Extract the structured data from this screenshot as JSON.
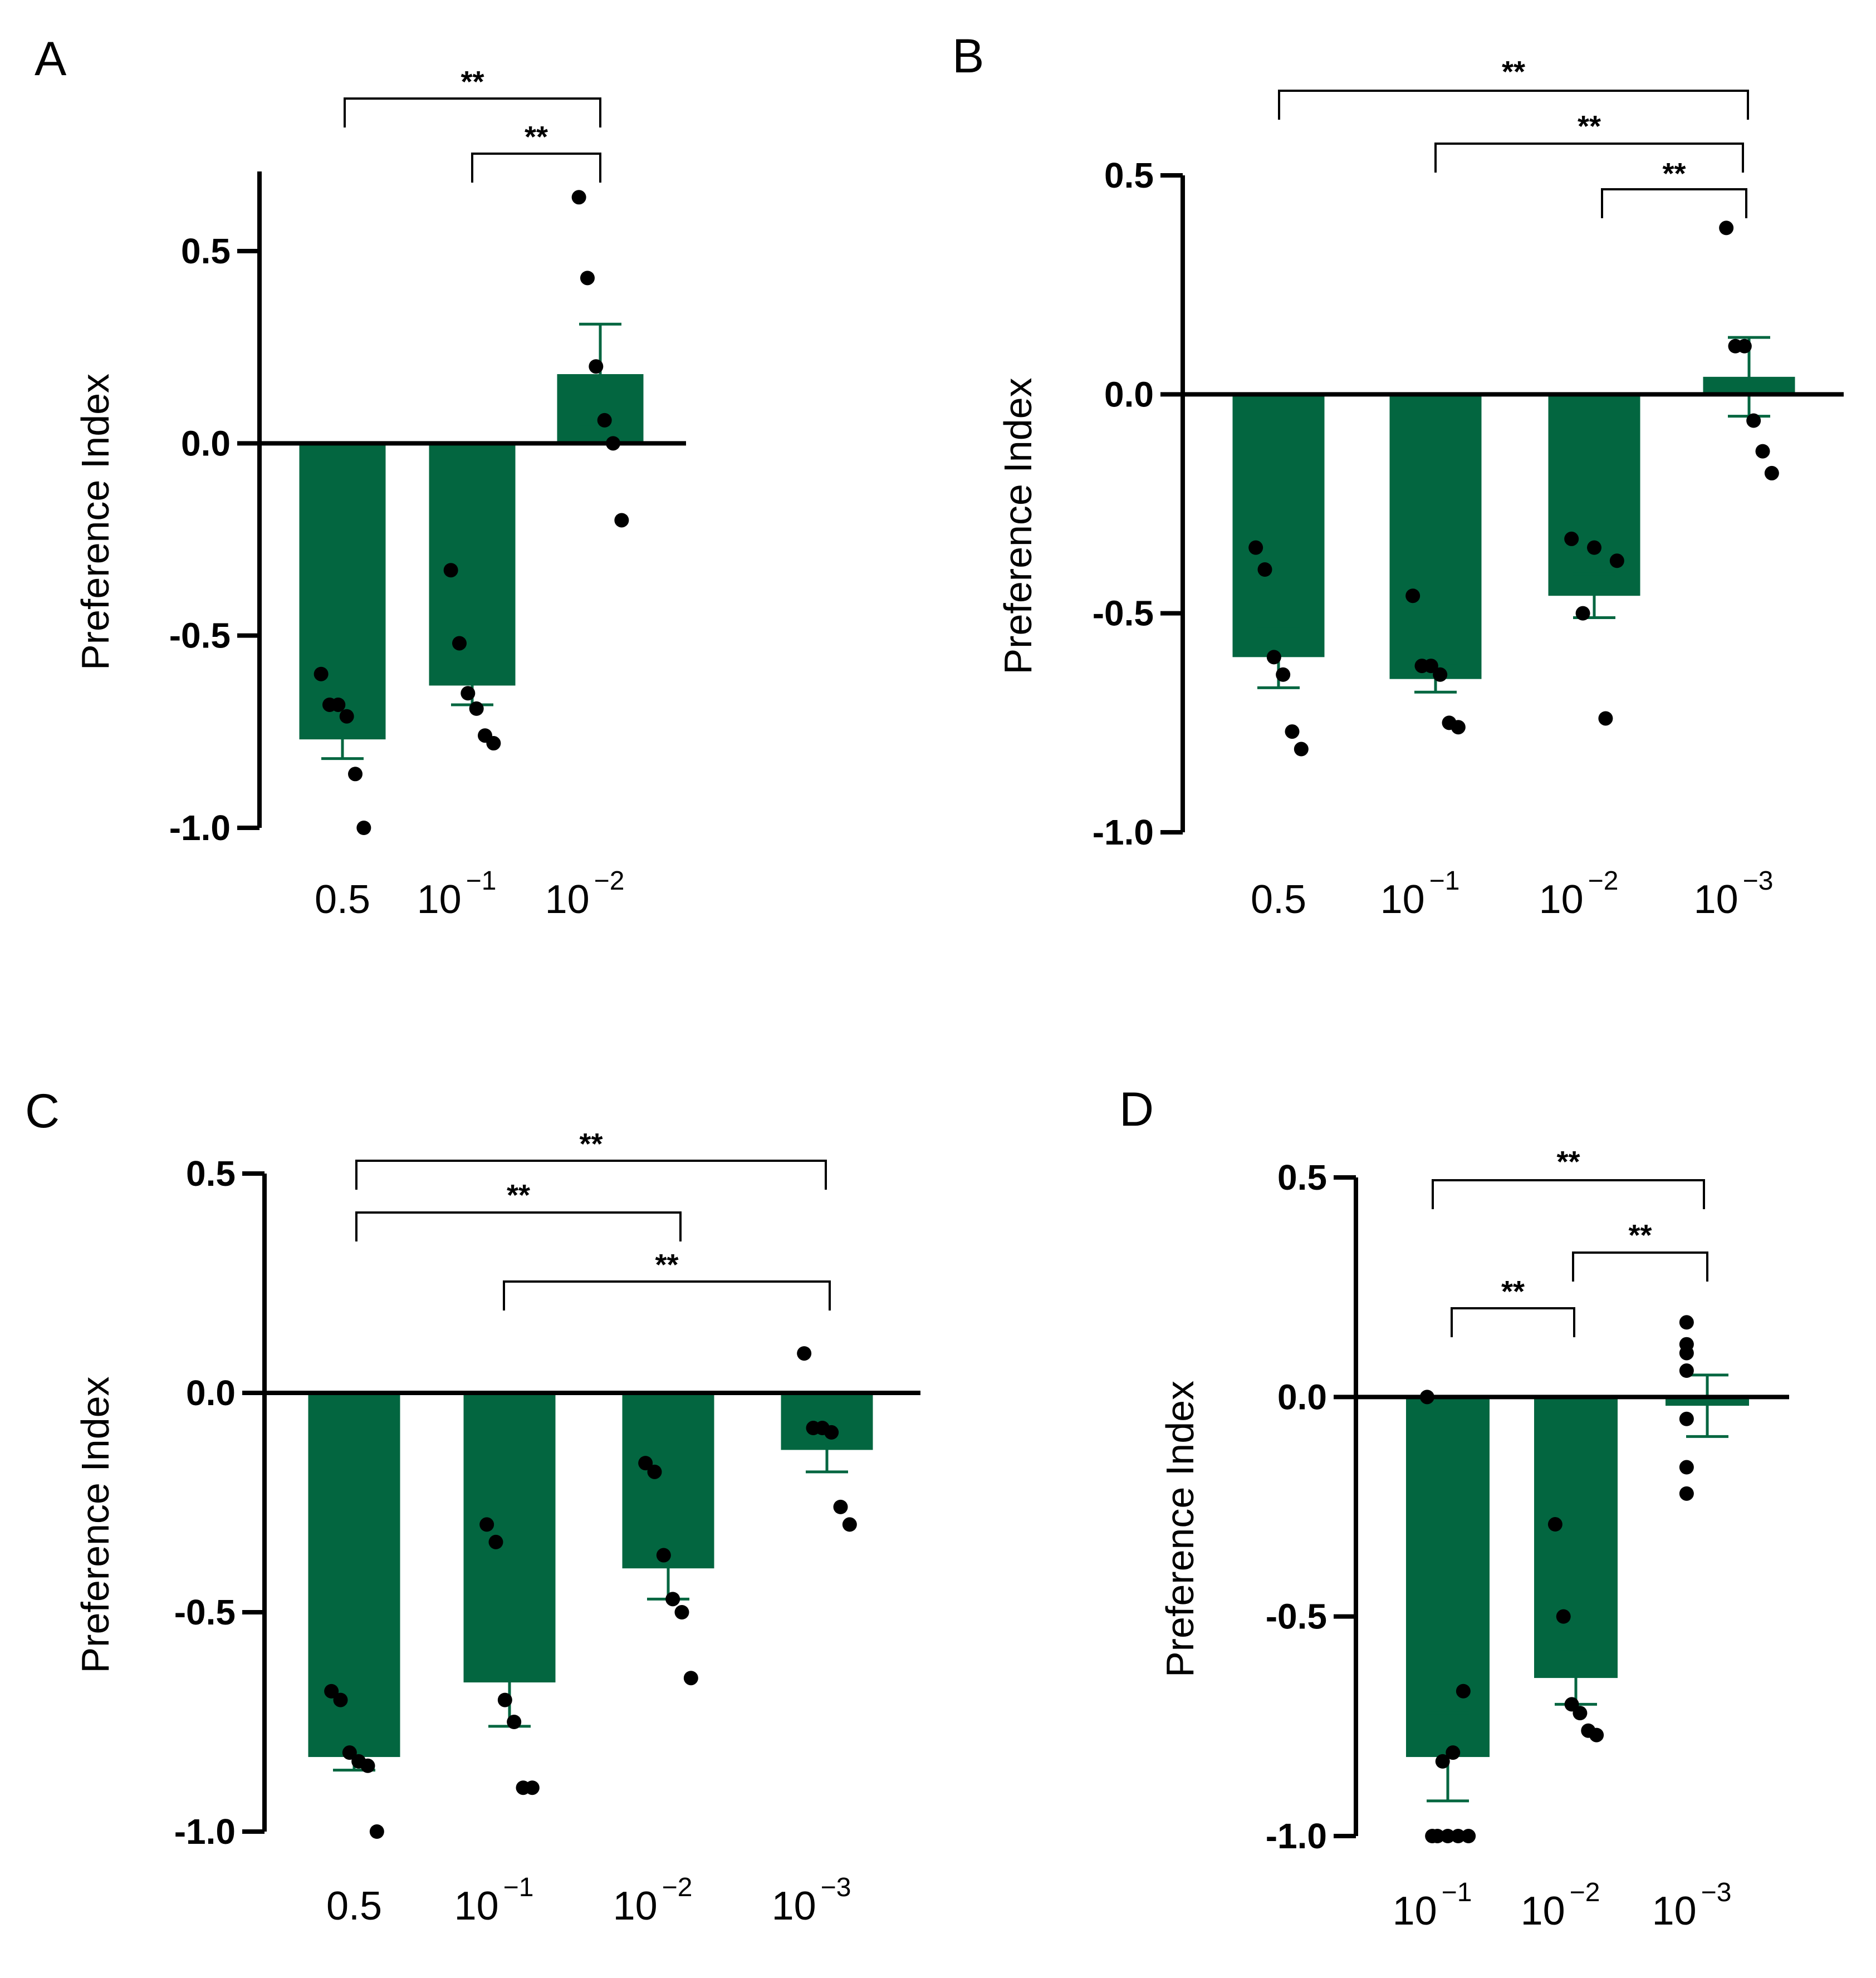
{
  "colors": {
    "bar": "#036640",
    "error": "#036640",
    "point": "#000000",
    "axis": "#000000"
  },
  "chart_data": [
    {
      "panel": "A",
      "type": "bar",
      "ylabel": "Preference Index",
      "ylim": [
        -1.0,
        0.7
      ],
      "yticks": [
        "0.5",
        "0.0",
        "-0.5",
        "-1.0"
      ],
      "categories": [
        {
          "base": "0.5",
          "exp": ""
        },
        {
          "base": "10",
          "exp": "−1"
        },
        {
          "base": "10",
          "exp": "−2"
        }
      ],
      "means": [
        -0.77,
        -0.63,
        0.18
      ],
      "sem": [
        0.05,
        0.05,
        0.13
      ],
      "points": [
        [
          -0.6,
          -0.68,
          -0.68,
          -0.71,
          -0.86,
          -1.0
        ],
        [
          -0.33,
          -0.52,
          -0.65,
          -0.69,
          -0.76,
          -0.78
        ],
        [
          0.64,
          0.43,
          0.2,
          0.06,
          0.0,
          -0.2
        ]
      ],
      "significance": [
        {
          "from": 0,
          "to": 2,
          "label": "**"
        },
        {
          "from": 1,
          "to": 2,
          "label": "**"
        }
      ]
    },
    {
      "panel": "B",
      "type": "bar",
      "ylabel": "Preference Index",
      "ylim": [
        -1.0,
        0.5
      ],
      "yticks": [
        "0.5",
        "0.0",
        "-0.5",
        "-1.0"
      ],
      "categories": [
        {
          "base": "0.5",
          "exp": ""
        },
        {
          "base": "10",
          "exp": "−1"
        },
        {
          "base": "10",
          "exp": "−2"
        },
        {
          "base": "10",
          "exp": "−3"
        }
      ],
      "means": [
        -0.6,
        -0.65,
        -0.46,
        0.04
      ],
      "sem": [
        0.07,
        0.03,
        0.05,
        0.09
      ],
      "points": [
        [
          -0.35,
          -0.4,
          -0.6,
          -0.64,
          -0.77,
          -0.81
        ],
        [
          -0.46,
          -0.62,
          -0.62,
          -0.64,
          -0.75,
          -0.76
        ],
        [
          -0.33,
          -0.35,
          -0.38,
          -0.5,
          -0.74
        ],
        [
          0.38,
          0.11,
          0.11,
          -0.06,
          -0.13,
          -0.18
        ]
      ],
      "significance": [
        {
          "from": 0,
          "to": 3,
          "label": "**"
        },
        {
          "from": 1,
          "to": 3,
          "label": "**"
        },
        {
          "from": 2,
          "to": 3,
          "label": "**"
        }
      ]
    },
    {
      "panel": "C",
      "type": "bar",
      "ylabel": "Preference Index",
      "ylim": [
        -1.0,
        0.5
      ],
      "yticks": [
        "0.5",
        "0.0",
        "-0.5",
        "-1.0"
      ],
      "categories": [
        {
          "base": "0.5",
          "exp": ""
        },
        {
          "base": "10",
          "exp": "−1"
        },
        {
          "base": "10",
          "exp": "−2"
        },
        {
          "base": "10",
          "exp": "−3"
        }
      ],
      "means": [
        -0.83,
        -0.66,
        -0.4,
        -0.13
      ],
      "sem": [
        0.03,
        0.1,
        0.07,
        0.05
      ],
      "points": [
        [
          -0.68,
          -0.7,
          -0.82,
          -0.84,
          -0.85,
          -1.0
        ],
        [
          -0.3,
          -0.34,
          -0.7,
          -0.75,
          -0.9,
          -0.9
        ],
        [
          -0.16,
          -0.18,
          -0.37,
          -0.47,
          -0.5,
          -0.65
        ],
        [
          0.09,
          -0.08,
          -0.08,
          -0.09,
          -0.26,
          -0.3
        ]
      ],
      "significance": [
        {
          "from": 0,
          "to": 3,
          "label": "**"
        },
        {
          "from": 0,
          "to": 2,
          "label": "**"
        },
        {
          "from": 1,
          "to": 3,
          "label": "**"
        }
      ]
    },
    {
      "panel": "D",
      "type": "bar",
      "ylabel": "Preference Index",
      "ylim": [
        -1.0,
        0.5
      ],
      "yticks": [
        "0.5",
        "0.0",
        "-0.5",
        "-1.0"
      ],
      "categories": [
        {
          "base": "10",
          "exp": "−1"
        },
        {
          "base": "10",
          "exp": "−2"
        },
        {
          "base": "10",
          "exp": "−3"
        }
      ],
      "means": [
        -0.82,
        -0.64,
        -0.02
      ],
      "sem": [
        0.1,
        0.06,
        0.07
      ],
      "points": [
        [
          0.0,
          -0.67,
          -0.81,
          -0.83,
          -1.0,
          -1.0,
          -1.0,
          -1.0,
          -1.0
        ],
        [
          -0.29,
          -0.5,
          -0.7,
          -0.72,
          -0.76,
          -0.77
        ],
        [
          0.17,
          0.12,
          0.1,
          0.06,
          -0.05,
          -0.16,
          -0.22
        ]
      ],
      "significance": [
        {
          "from": 0,
          "to": 2,
          "label": "**"
        },
        {
          "from": 1,
          "to": 2,
          "label": "**"
        },
        {
          "from": 0,
          "to": 1,
          "label": "**"
        }
      ]
    }
  ]
}
